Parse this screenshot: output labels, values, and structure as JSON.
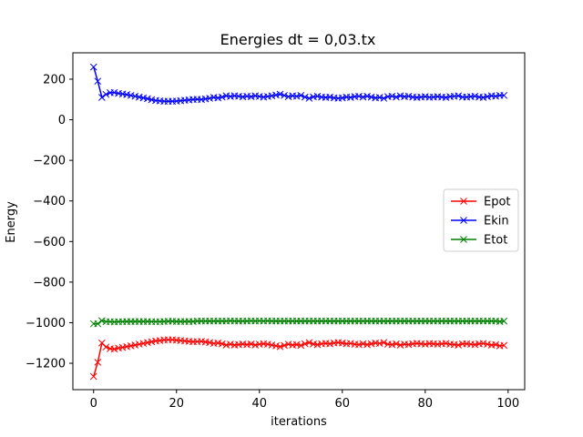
{
  "chart_data": {
    "type": "line",
    "title": "Energies dt = 0,03.tx",
    "xlabel": "iterations",
    "ylabel": "Energy",
    "xlim": [
      -5,
      104
    ],
    "ylim": [
      -1330,
      330
    ],
    "xticks": [
      0,
      20,
      40,
      60,
      80,
      100
    ],
    "yticks": [
      -1200,
      -1000,
      -800,
      -600,
      -400,
      -200,
      0,
      200
    ],
    "grid": false,
    "legend_position": "center-right",
    "marker": "x",
    "series": [
      {
        "name": "Epot",
        "color": "#ff0000",
        "values": [
          -1265,
          -1195,
          -1100,
          -1120,
          -1128,
          -1130,
          -1125,
          -1122,
          -1118,
          -1114,
          -1110,
          -1106,
          -1102,
          -1098,
          -1094,
          -1090,
          -1088,
          -1085,
          -1084,
          -1084,
          -1086,
          -1088,
          -1090,
          -1092,
          -1094,
          -1093,
          -1092,
          -1095,
          -1098,
          -1102,
          -1100,
          -1104,
          -1110,
          -1106,
          -1110,
          -1108,
          -1105,
          -1108,
          -1105,
          -1110,
          -1106,
          -1104,
          -1106,
          -1110,
          -1114,
          -1118,
          -1112,
          -1106,
          -1110,
          -1108,
          -1112,
          -1104,
          -1098,
          -1105,
          -1108,
          -1104,
          -1102,
          -1104,
          -1100,
          -1098,
          -1100,
          -1104,
          -1102,
          -1106,
          -1108,
          -1104,
          -1108,
          -1104,
          -1100,
          -1102,
          -1098,
          -1106,
          -1108,
          -1104,
          -1110,
          -1106,
          -1108,
          -1104,
          -1102,
          -1104,
          -1106,
          -1103,
          -1104,
          -1106,
          -1104,
          -1102,
          -1106,
          -1108,
          -1110,
          -1104,
          -1104,
          -1106,
          -1108,
          -1104,
          -1102,
          -1106,
          -1110,
          -1108,
          -1114,
          -1112
        ]
      },
      {
        "name": "Ekin",
        "color": "#0000ff",
        "values": [
          260,
          190,
          110,
          125,
          133,
          134,
          130,
          127,
          124,
          120,
          116,
          112,
          108,
          104,
          99,
          95,
          93,
          91,
          91,
          91,
          92,
          94,
          96,
          98,
          100,
          101,
          100,
          103,
          106,
          110,
          108,
          112,
          118,
          115,
          118,
          116,
          113,
          116,
          114,
          118,
          115,
          112,
          115,
          118,
          122,
          126,
          120,
          114,
          118,
          116,
          120,
          112,
          106,
          113,
          116,
          112,
          110,
          112,
          108,
          106,
          108,
          112,
          110,
          114,
          116,
          112,
          116,
          112,
          108,
          110,
          106,
          114,
          116,
          112,
          118,
          114,
          116,
          112,
          110,
          112,
          114,
          111,
          112,
          114,
          112,
          110,
          114,
          116,
          118,
          112,
          112,
          114,
          116,
          112,
          110,
          114,
          118,
          116,
          120,
          120
        ]
      },
      {
        "name": "Etot",
        "color": "#008000",
        "values": [
          -1005,
          -1005,
          -990,
          -995,
          -995,
          -996,
          -995,
          -995,
          -994,
          -994,
          -994,
          -994,
          -994,
          -994,
          -995,
          -995,
          -995,
          -994,
          -993,
          -993,
          -994,
          -994,
          -994,
          -994,
          -994,
          -992,
          -992,
          -992,
          -992,
          -992,
          -992,
          -992,
          -992,
          -991,
          -992,
          -992,
          -992,
          -992,
          -991,
          -992,
          -991,
          -992,
          -991,
          -992,
          -992,
          -992,
          -992,
          -992,
          -992,
          -992,
          -992,
          -992,
          -992,
          -992,
          -992,
          -992,
          -992,
          -992,
          -992,
          -992,
          -992,
          -992,
          -992,
          -992,
          -992,
          -992,
          -992,
          -992,
          -992,
          -992,
          -992,
          -992,
          -992,
          -992,
          -992,
          -992,
          -992,
          -992,
          -992,
          -992,
          -992,
          -992,
          -992,
          -992,
          -992,
          -992,
          -992,
          -992,
          -992,
          -992,
          -992,
          -992,
          -992,
          -992,
          -992,
          -992,
          -992,
          -992,
          -994,
          -992
        ]
      }
    ]
  }
}
